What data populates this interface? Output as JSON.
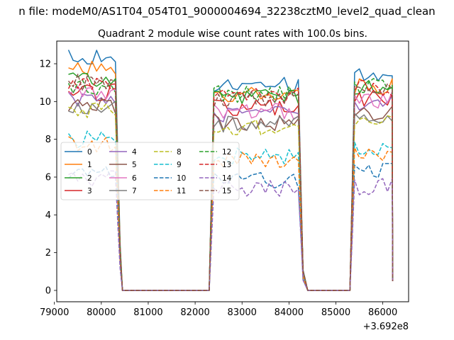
{
  "chart_data": {
    "type": "line",
    "suptitle": "n file: modeM0/AS1T04_054T01_9000004694_32238cztM0_level2_quad_clean",
    "title": "Quadrant 2 module wise count rates with 100.0s bins.",
    "xlabel": "",
    "ylabel": "",
    "x_offset_label": "+3.692e8",
    "xlim": [
      79050,
      86550
    ],
    "ylim": [
      -0.6,
      13.2
    ],
    "xticks": [
      79000,
      80000,
      81000,
      82000,
      83000,
      84000,
      85000,
      86000
    ],
    "xtick_labels": [
      "79000",
      "80000",
      "81000",
      "82000",
      "83000",
      "84000",
      "85000",
      "86000"
    ],
    "yticks": [
      0,
      2,
      4,
      6,
      8,
      10,
      12
    ],
    "ytick_labels": [
      "0",
      "2",
      "4",
      "6",
      "8",
      "10",
      "12"
    ],
    "grid": false,
    "legend_position": "center-left",
    "legend_ncol": 4,
    "segments": [
      {
        "x_start": 79300,
        "x_end": 80300
      },
      {
        "x_start": 82400,
        "x_end": 84200
      },
      {
        "x_start": 85400,
        "x_end": 86200
      }
    ],
    "gap_points": [
      {
        "x": 80350,
        "frac": 0.6
      },
      {
        "x": 80400,
        "frac": 0.2
      },
      {
        "x": 80450,
        "frac": 0
      },
      {
        "x": 82300,
        "frac": 0
      },
      {
        "x": 82350,
        "frac": 0.5
      },
      {
        "x": 84250,
        "frac": 0.55
      },
      {
        "x": 84300,
        "frac": 0.1
      },
      {
        "x": 84400,
        "frac": 0
      },
      {
        "x": 85300,
        "frac": 0
      },
      {
        "x": 85350,
        "frac": 0.5
      },
      {
        "x": 86200,
        "frac": 0.05
      }
    ],
    "series": [
      {
        "name": "0",
        "color": "#1f77b4",
        "dash": "solid",
        "levels": [
          12.4,
          10.9,
          11.4
        ]
      },
      {
        "name": "1",
        "color": "#ff7f0e",
        "dash": "solid",
        "levels": [
          11.7,
          10.3,
          10.8
        ]
      },
      {
        "name": "2",
        "color": "#2ca02c",
        "dash": "solid",
        "levels": [
          11.2,
          10.2,
          10.8
        ]
      },
      {
        "name": "3",
        "color": "#d62728",
        "dash": "solid",
        "levels": [
          10.5,
          9.7,
          10.2
        ]
      },
      {
        "name": "4",
        "color": "#9467bd",
        "dash": "solid",
        "levels": [
          10.2,
          9.3,
          9.9
        ]
      },
      {
        "name": "5",
        "color": "#8c564b",
        "dash": "solid",
        "levels": [
          9.8,
          8.9,
          9.4
        ]
      },
      {
        "name": "6",
        "color": "#e377c2",
        "dash": "solid",
        "levels": [
          10.4,
          9.5,
          10.1
        ]
      },
      {
        "name": "7",
        "color": "#7f7f7f",
        "dash": "solid",
        "levels": [
          9.7,
          8.8,
          9.2
        ]
      },
      {
        "name": "8",
        "color": "#bcbd22",
        "dash": "dashed",
        "levels": [
          9.6,
          8.6,
          9.0
        ]
      },
      {
        "name": "9",
        "color": "#17becf",
        "dash": "dashed",
        "levels": [
          8.0,
          7.1,
          7.5
        ]
      },
      {
        "name": "10",
        "color": "#1f77b4",
        "dash": "dashed",
        "levels": [
          6.3,
          5.8,
          6.3
        ]
      },
      {
        "name": "11",
        "color": "#ff7f0e",
        "dash": "dashed",
        "levels": [
          7.7,
          6.9,
          7.2
        ]
      },
      {
        "name": "12",
        "color": "#2ca02c",
        "dash": "dashed",
        "levels": [
          10.8,
          10.4,
          10.9
        ]
      },
      {
        "name": "13",
        "color": "#d62728",
        "dash": "dashed",
        "levels": [
          11.0,
          10.3,
          10.7
        ]
      },
      {
        "name": "14",
        "color": "#9467bd",
        "dash": "dashed",
        "levels": [
          5.9,
          5.4,
          5.5
        ]
      },
      {
        "name": "15",
        "color": "#8c564b",
        "dash": "dashed",
        "levels": [
          11.0,
          10.1,
          10.6
        ]
      }
    ]
  }
}
